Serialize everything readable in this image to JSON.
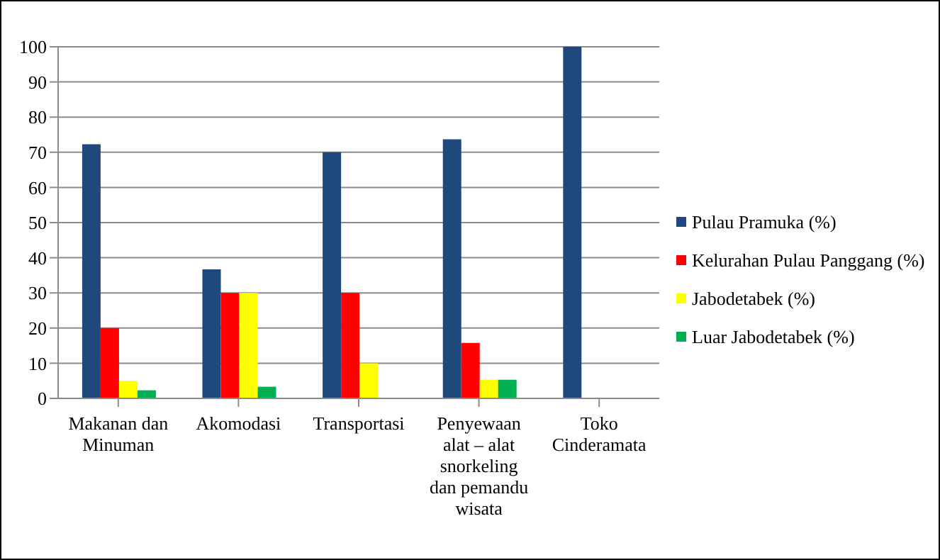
{
  "chart_data": {
    "type": "bar",
    "categories": [
      "Makanan dan Minuman",
      "Akomodasi",
      "Transportasi",
      "Penyewaan alat – alat snorkeling dan pemandu wisata",
      "Toko Cinderamata"
    ],
    "series": [
      {
        "name": "Pulau Pramuka (%)",
        "color": "#1f497d",
        "values": [
          72.3,
          36.7,
          70,
          73.7,
          100
        ]
      },
      {
        "name": "Kelurahan Pulau Panggang (%)",
        "color": "#ff0000",
        "values": [
          20,
          30,
          30,
          15.8,
          0
        ]
      },
      {
        "name": "Jabodetabek (%)",
        "color": "#ffff00",
        "values": [
          5,
          30,
          10,
          5.3,
          0
        ]
      },
      {
        "name": "Luar Jabodetabek (%)",
        "color": "#00b050",
        "values": [
          2.3,
          3.3,
          0,
          5.3,
          0
        ]
      }
    ],
    "ylim": [
      0,
      100
    ],
    "yticks": [
      0,
      10,
      20,
      30,
      40,
      50,
      60,
      70,
      80,
      90,
      100
    ],
    "grid": "y",
    "legend": "right"
  }
}
